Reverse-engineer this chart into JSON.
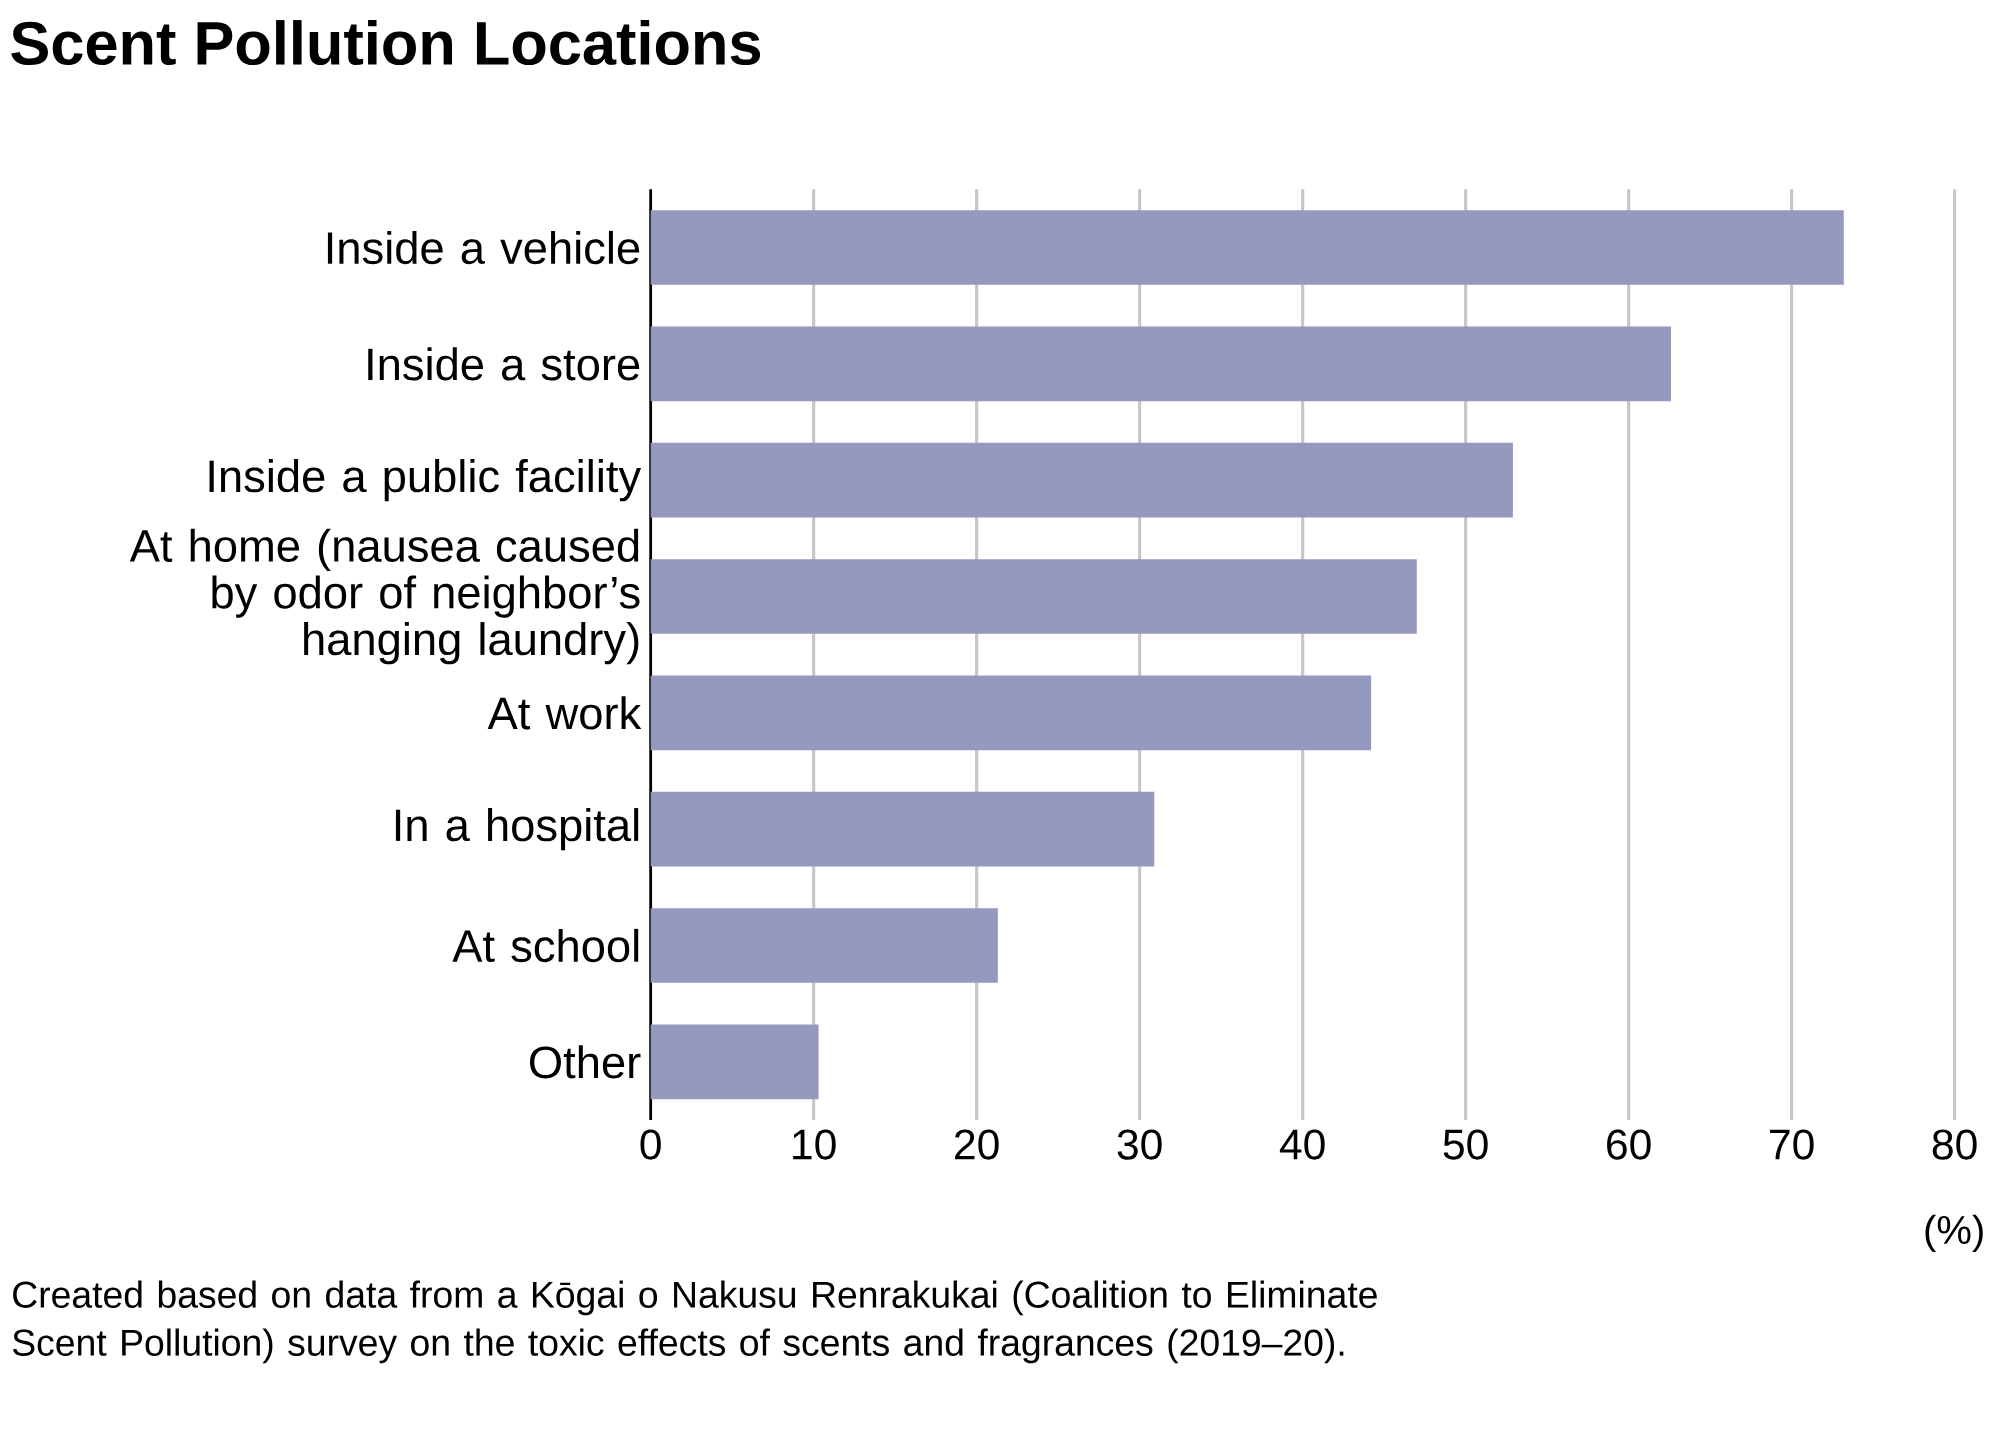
{
  "chart_data": {
    "type": "bar",
    "orientation": "horizontal",
    "title": "Scent Pollution Locations",
    "categories": [
      "Inside a vehicle",
      "Inside a store",
      "Inside a public facility",
      "At home (nausea caused by odor of neighbor’s hanging laundry)",
      "At work",
      "In a hospital",
      "At school",
      "Other"
    ],
    "values": [
      73.2,
      62.6,
      52.9,
      47.0,
      44.2,
      30.9,
      21.3,
      10.3
    ],
    "color": "#9598bf",
    "xlim": [
      0,
      80
    ],
    "xticks": [
      0,
      10,
      20,
      30,
      40,
      50,
      60,
      70,
      80
    ],
    "xlabel": "(%)",
    "grid": "x",
    "annotations": [
      "Created based on data from a Kōgai o Nakusu Renrakukai (Coalition to Eliminate Scent Pollution) survey on the toxic effects of scents and fragrances (2019–20)."
    ]
  }
}
